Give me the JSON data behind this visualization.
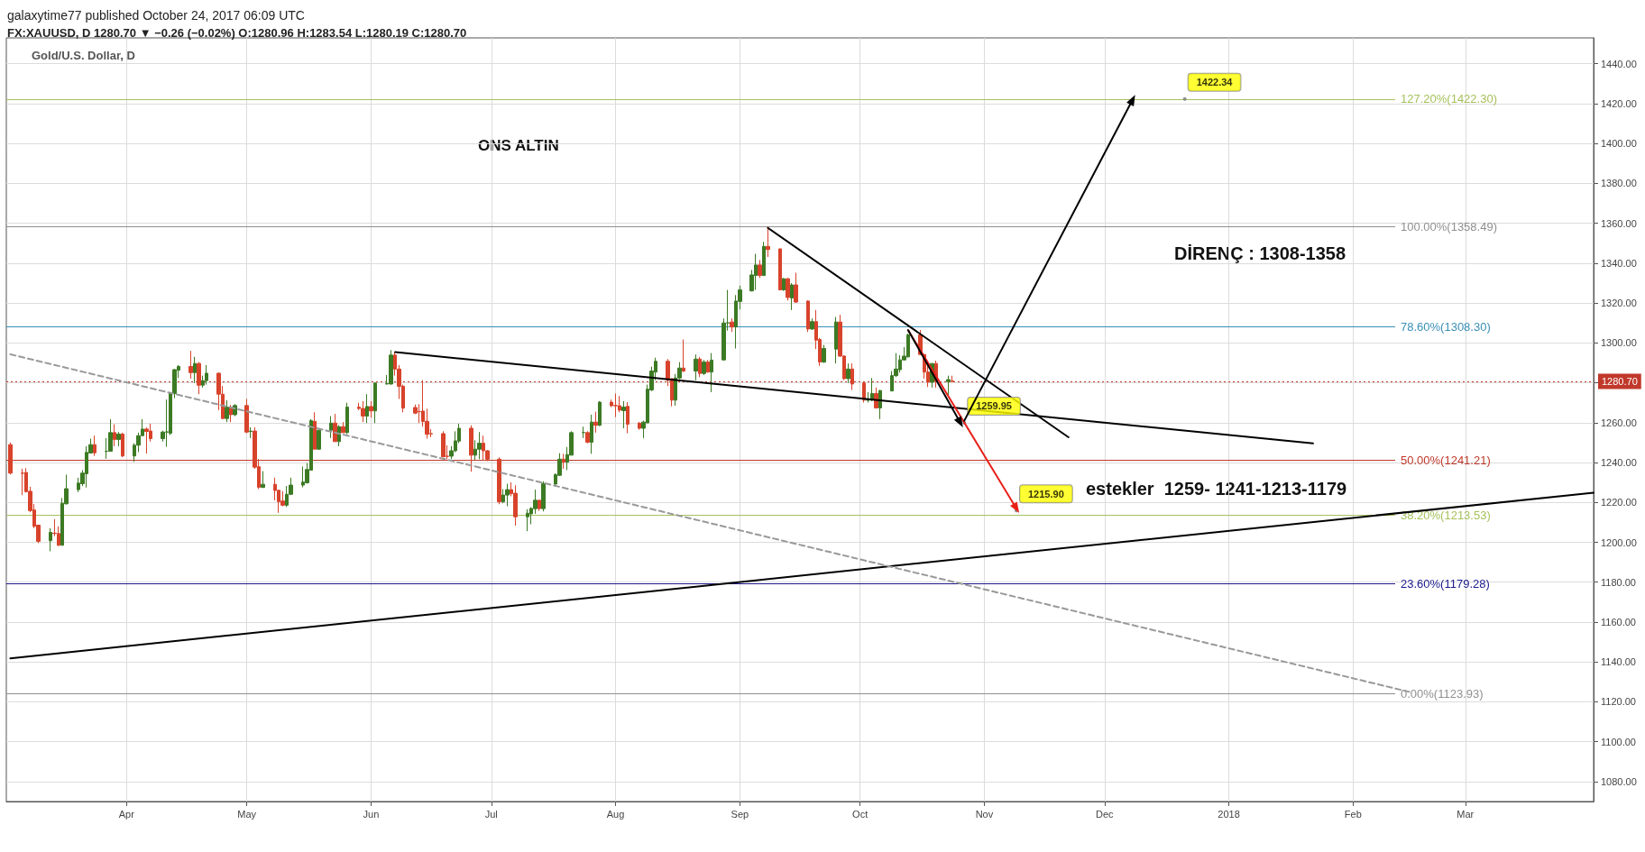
{
  "chart_data": {
    "type": "candlestick",
    "title": "Gold/U.S. Dollar, D",
    "annotations": [
      "galaxytime77 published October 24, 2017 06:09 UTC",
      "FX:XAUUSD, D 1280.70 ▼ −0.26 (−0.02%) O:1280.96 H:1283.54 L:1280.19 C:1280.70",
      "ONS ALTIN",
      "DİRENÇ : 1308-1358",
      "estekler  1259- 1241-1213-1179",
      {
        "text": "1422.34",
        "x": "2017-12-21",
        "y": 1422.34
      },
      {
        "text": "1259.95",
        "x": "2017-10-27",
        "y": 1259.95
      },
      {
        "text": "1215.90",
        "x": "2017-11-09",
        "y": 1215.9
      }
    ],
    "series": [
      {
        "x": [
          "2017-03-03",
          "2017-03-06",
          "2017-03-07",
          "2017-03-08",
          "2017-03-09",
          "2017-03-10",
          "2017-03-13",
          "2017-03-14",
          "2017-03-15",
          "2017-03-16",
          "2017-03-17",
          "2017-03-20",
          "2017-03-21",
          "2017-03-22",
          "2017-03-23",
          "2017-03-24",
          "2017-03-27",
          "2017-03-28",
          "2017-03-29",
          "2017-03-30",
          "2017-03-31",
          "2017-04-03",
          "2017-04-04",
          "2017-04-05",
          "2017-04-06",
          "2017-04-07",
          "2017-04-10",
          "2017-04-11",
          "2017-04-12",
          "2017-04-13",
          "2017-04-14",
          "2017-04-17",
          "2017-04-18",
          "2017-04-19",
          "2017-04-20",
          "2017-04-21",
          "2017-04-24",
          "2017-04-25",
          "2017-04-26",
          "2017-04-27",
          "2017-04-28",
          "2017-05-01",
          "2017-05-02",
          "2017-05-03",
          "2017-05-04",
          "2017-05-05",
          "2017-05-08",
          "2017-05-09",
          "2017-05-10",
          "2017-05-11",
          "2017-05-12",
          "2017-05-15",
          "2017-05-16",
          "2017-05-17",
          "2017-05-18",
          "2017-05-19",
          "2017-05-22",
          "2017-05-23",
          "2017-05-24",
          "2017-05-25",
          "2017-05-26",
          "2017-05-29",
          "2017-05-30",
          "2017-05-31",
          "2017-06-01",
          "2017-06-02",
          "2017-06-05",
          "2017-06-06",
          "2017-06-07",
          "2017-06-08",
          "2017-06-09",
          "2017-06-12",
          "2017-06-13",
          "2017-06-14",
          "2017-06-15",
          "2017-06-16",
          "2017-06-19",
          "2017-06-20",
          "2017-06-21",
          "2017-06-22",
          "2017-06-23",
          "2017-06-26",
          "2017-06-27",
          "2017-06-28",
          "2017-06-29",
          "2017-06-30",
          "2017-07-03",
          "2017-07-04",
          "2017-07-05",
          "2017-07-06",
          "2017-07-07",
          "2017-07-10",
          "2017-07-11",
          "2017-07-12",
          "2017-07-13",
          "2017-07-14",
          "2017-07-17",
          "2017-07-18",
          "2017-07-19",
          "2017-07-20",
          "2017-07-21",
          "2017-07-24",
          "2017-07-25",
          "2017-07-26",
          "2017-07-27",
          "2017-07-28",
          "2017-07-31",
          "2017-08-01",
          "2017-08-02",
          "2017-08-03",
          "2017-08-04",
          "2017-08-07",
          "2017-08-08",
          "2017-08-09",
          "2017-08-10",
          "2017-08-11",
          "2017-08-14",
          "2017-08-15",
          "2017-08-16",
          "2017-08-17",
          "2017-08-18",
          "2017-08-21",
          "2017-08-22",
          "2017-08-23",
          "2017-08-24",
          "2017-08-25",
          "2017-08-28",
          "2017-08-29",
          "2017-08-30",
          "2017-08-31",
          "2017-09-01",
          "2017-09-04",
          "2017-09-05",
          "2017-09-06",
          "2017-09-07",
          "2017-09-08",
          "2017-09-11",
          "2017-09-12",
          "2017-09-13",
          "2017-09-14",
          "2017-09-15",
          "2017-09-18",
          "2017-09-19",
          "2017-09-20",
          "2017-09-21",
          "2017-09-22",
          "2017-09-25",
          "2017-09-26",
          "2017-09-27",
          "2017-09-28",
          "2017-09-29",
          "2017-10-02",
          "2017-10-03",
          "2017-10-04",
          "2017-10-05",
          "2017-10-06",
          "2017-10-09",
          "2017-10-10",
          "2017-10-11",
          "2017-10-12",
          "2017-10-13",
          "2017-10-16",
          "2017-10-17",
          "2017-10-18",
          "2017-10-19",
          "2017-10-20",
          "2017-10-23",
          "2017-10-24"
        ],
        "ohlc": [
          [
            1249,
            1250,
            1234,
            1234.7
          ],
          [
            1234.7,
            1236.9,
            1223.7,
            1234.6
          ],
          [
            1235,
            1237.2,
            1225,
            1225.4
          ],
          [
            1225.6,
            1227.9,
            1215.1,
            1215.9
          ],
          [
            1216.2,
            1219.2,
            1207.1,
            1208
          ],
          [
            1208.6,
            1208.6,
            1199.6,
            1200.5
          ],
          [
            1200.8,
            1207.1,
            1195.5,
            1205
          ],
          [
            1204.6,
            1211.6,
            1203.1,
            1204.4
          ],
          [
            1204.4,
            1208,
            1198.1,
            1198.5
          ],
          [
            1198.5,
            1222.2,
            1198.5,
            1219.6
          ],
          [
            1219.3,
            1233.9,
            1219,
            1226.9
          ],
          [
            1226.4,
            1232.4,
            1225.2,
            1229.7
          ],
          [
            1229.4,
            1236.2,
            1228.2,
            1234.7
          ],
          [
            1234.4,
            1248.2,
            1227.5,
            1245.1
          ],
          [
            1244.8,
            1252,
            1244.5,
            1249
          ],
          [
            1249,
            1253.5,
            1243.3,
            1244.9
          ],
          [
            1245.6,
            1252.3,
            1241.9,
            1245.7
          ],
          [
            1245.7,
            1261.8,
            1245.7,
            1255
          ],
          [
            1255,
            1259.2,
            1248.2,
            1251.6
          ],
          [
            1251.6,
            1255.3,
            1248.2,
            1254.3
          ],
          [
            1254.3,
            1255,
            1242.7,
            1243.3
          ],
          [
            1243.3,
            1249.7,
            1240.4,
            1248.7
          ],
          [
            1248.7,
            1255,
            1245.2,
            1253.5
          ],
          [
            1253.5,
            1261.8,
            1253.2,
            1256.8
          ],
          [
            1256.8,
            1257.6,
            1244.5,
            1255.6
          ],
          [
            1255.8,
            1259.5,
            1250.5,
            1252
          ],
          [
            1252,
            1256,
            1250.5,
            1255.3
          ],
          [
            1255.3,
            1271.6,
            1247.9,
            1255.4
          ],
          [
            1254.7,
            1275.4,
            1253.8,
            1274.9
          ],
          [
            1274.6,
            1286.9,
            1272.3,
            1286.6
          ],
          [
            1286.3,
            1288.9,
            1282.4,
            1288.2
          ],
          [
            1288.2,
            1296,
            1282.1,
            1285.1
          ],
          [
            1285.1,
            1293,
            1279.9,
            1289.7
          ],
          [
            1289.7,
            1290.4,
            1274.3,
            1278.8
          ],
          [
            1278.8,
            1283.6,
            1277.6,
            1281.1
          ],
          [
            1281.1,
            1288.9,
            1279.1,
            1284.8
          ],
          [
            1284.8,
            1285.1,
            1266.3,
            1274.3
          ],
          [
            1274.3,
            1278.4,
            1261.8,
            1262.1
          ],
          [
            1262.1,
            1271.3,
            1260.3,
            1267.8
          ],
          [
            1267.8,
            1268.9,
            1260.3,
            1264
          ],
          [
            1264,
            1269.3,
            1263.3,
            1268.6
          ],
          [
            1268.6,
            1271.9,
            1254.7,
            1255.3
          ],
          [
            1255.6,
            1257.7,
            1252.3,
            1255.8
          ],
          [
            1255.8,
            1257.7,
            1236.9,
            1237.7
          ],
          [
            1237.9,
            1241.8,
            1226.7,
            1227.6
          ],
          [
            1227.6,
            1235.7,
            1227.2,
            1229.1
          ],
          [
            1229.1,
            1232.4,
            1221.1,
            1226
          ],
          [
            1226.1,
            1226.1,
            1214.8,
            1220.4
          ],
          [
            1220.7,
            1225.6,
            1218.1,
            1218.6
          ],
          [
            1218.6,
            1228.2,
            1217.7,
            1224.1
          ],
          [
            1224.1,
            1232.4,
            1223.7,
            1228.7
          ],
          [
            1228.7,
            1238,
            1227.6,
            1230.2
          ],
          [
            1229.9,
            1239.7,
            1229.4,
            1236.5
          ],
          [
            1236.2,
            1261.8,
            1236.2,
            1261
          ],
          [
            1260.7,
            1265.2,
            1246.7,
            1246.7
          ],
          [
            1246.7,
            1256.8,
            1246.4,
            1256.2
          ],
          [
            1256.2,
            1263.3,
            1252.3,
            1259.8
          ],
          [
            1259.8,
            1264.4,
            1250.5,
            1250.5
          ],
          [
            1250.5,
            1258.8,
            1248.2,
            1258
          ],
          [
            1258,
            1260.3,
            1255,
            1255
          ],
          [
            1255,
            1270,
            1254.3,
            1267.8
          ],
          [
            1267.8,
            1270,
            1266.3,
            1267.1
          ],
          [
            1267.1,
            1270.8,
            1260.3,
            1263.3
          ],
          [
            1263.3,
            1274.3,
            1259.8,
            1268.1
          ],
          [
            1268.1,
            1270.8,
            1262.5,
            1265.9
          ],
          [
            1265.9,
            1279.9,
            1259.8,
            1279.9
          ],
          [
            1279.4,
            1283.9,
            1279.1,
            1279.6
          ],
          [
            1279.4,
            1296.4,
            1279.1,
            1293.9
          ],
          [
            1293.9,
            1295.4,
            1283.6,
            1286.9
          ],
          [
            1286.9,
            1288.9,
            1271.9,
            1278.2
          ],
          [
            1278.3,
            1279.1,
            1265.2,
            1267.3
          ],
          [
            1267.6,
            1269.1,
            1264.3,
            1264.8
          ],
          [
            1265.6,
            1269.3,
            1259.8,
            1265.5
          ],
          [
            1265.8,
            1281.3,
            1258,
            1260.6
          ],
          [
            1260.7,
            1267,
            1252,
            1254.2
          ],
          [
            1254.5,
            1256.8,
            1252.7,
            1254.4
          ],
          [
            1254.5,
            1255.7,
            1242.6,
            1242.9
          ],
          [
            1243.2,
            1248.7,
            1241.7,
            1243.1
          ],
          [
            1243.2,
            1248.2,
            1241.7,
            1245.9
          ],
          [
            1245.9,
            1255.7,
            1245.2,
            1250.9
          ],
          [
            1250.8,
            1259.5,
            1249.7,
            1257.2
          ],
          [
            1257.2,
            1258.7,
            1235.4,
            1243.7
          ],
          [
            1243.7,
            1251.2,
            1241.4,
            1246.7
          ],
          [
            1246.7,
            1255.3,
            1241.7,
            1249.7
          ],
          [
            1249.7,
            1253.5,
            1241.1,
            1245.9
          ],
          [
            1245.9,
            1246.2,
            1240.7,
            1241.7
          ],
          [
            1241.7,
            1242.6,
            1219.1,
            1220.3
          ],
          [
            1220.3,
            1226.7,
            1219.6,
            1223.7
          ],
          [
            1223.7,
            1229.4,
            1218.1,
            1226.4
          ],
          [
            1226.4,
            1230.1,
            1223.1,
            1224.4
          ],
          [
            1224.6,
            1228.6,
            1208.3,
            1212.8
          ],
          [
            1212.8,
            1216.6,
            1205.6,
            1214.6
          ],
          [
            1214.3,
            1217.6,
            1209,
            1217
          ],
          [
            1216.9,
            1226.4,
            1214.3,
            1221.1
          ],
          [
            1221.1,
            1221.1,
            1215.8,
            1216.9
          ],
          [
            1216.9,
            1230.6,
            1215.5,
            1229.4
          ],
          [
            1229.2,
            1234.6,
            1228.2,
            1233.9
          ],
          [
            1233.6,
            1244.7,
            1233.3,
            1241.7
          ],
          [
            1241.7,
            1244.4,
            1236.9,
            1240.2
          ],
          [
            1240.2,
            1247.8,
            1236.2,
            1244
          ],
          [
            1243.7,
            1255.7,
            1243.7,
            1255
          ],
          [
            1255,
            1258,
            1252.3,
            1255.1
          ],
          [
            1255,
            1255.7,
            1249.7,
            1250.2
          ],
          [
            1250.2,
            1264,
            1244.4,
            1260.3
          ],
          [
            1260.3,
            1265.5,
            1255,
            1258.7
          ],
          [
            1258.7,
            1270.8,
            1258.3,
            1270.3
          ],
          [
            1270.3,
            1271.6,
            1267.8,
            1268.5
          ],
          [
            1268.6,
            1274.6,
            1262.8,
            1268.5
          ],
          [
            1268.5,
            1273.4,
            1265.2,
            1266.3
          ],
          [
            1266,
            1270.8,
            1257.2,
            1267.8
          ],
          [
            1268.2,
            1270.3,
            1254.7,
            1259.2
          ],
          [
            1259.8,
            1260.3,
            1256.5,
            1257.2
          ],
          [
            1257.2,
            1261,
            1252.3,
            1260.3
          ],
          [
            1259.9,
            1279.1,
            1259.8,
            1276.8
          ],
          [
            1276.4,
            1288.1,
            1275.8,
            1285.9
          ],
          [
            1285.4,
            1292.6,
            1281.3,
            1290.8
          ],
          [
            1290.8,
            1291.9,
            1278.4,
            1281.3
          ],
          [
            1282.1,
            1282.1,
            1268.2,
            1271.3
          ],
          [
            1271.3,
            1284.4,
            1268.5,
            1282.4
          ],
          [
            1282.4,
            1290.4,
            1281.8,
            1287.4
          ],
          [
            1287.4,
            1301.7,
            1285.4,
            1285.9
          ],
          [
            1285.9,
            1294.2,
            1281.3,
            1291.9
          ],
          [
            1291.9,
            1293,
            1282.9,
            1284.7
          ],
          [
            1284.7,
            1291.4,
            1283.9,
            1290.4
          ],
          [
            1290.4,
            1291.4,
            1285.1,
            1285.4
          ],
          [
            1285.4,
            1294.9,
            1275.3,
            1291.4
          ],
          [
            1291.5,
            1312.3,
            1291.1,
            1310
          ],
          [
            1310,
            1326.6,
            1306.2,
            1310.1
          ],
          [
            1310.5,
            1312.3,
            1305.5,
            1308
          ],
          [
            1308,
            1324,
            1297.2,
            1321
          ],
          [
            1320.8,
            1328.8,
            1316.8,
            1326.6
          ],
          [
            1326.1,
            1336.6,
            1325.8,
            1334.1
          ],
          [
            1333.8,
            1344.7,
            1326.6,
            1339.1
          ],
          [
            1339.1,
            1341.6,
            1332.6,
            1333.8
          ],
          [
            1333.8,
            1350.7,
            1333.6,
            1348.4
          ],
          [
            1348.4,
            1358.5,
            1343.1,
            1346.9
          ],
          [
            1347.2,
            1347.2,
            1326.6,
            1326.6
          ],
          [
            1326.6,
            1332.6,
            1326.1,
            1332.2
          ],
          [
            1332.2,
            1332.6,
            1321.3,
            1322.8
          ],
          [
            1322.5,
            1330,
            1316.5,
            1329.1
          ],
          [
            1329.1,
            1335.2,
            1320.1,
            1320.5
          ],
          [
            1321,
            1321.3,
            1305.5,
            1307
          ],
          [
            1307,
            1312.3,
            1306.5,
            1310.7
          ],
          [
            1310.7,
            1316.5,
            1296.9,
            1301.4
          ],
          [
            1301.7,
            1302.5,
            1288.5,
            1290.4
          ],
          [
            1290.4,
            1299,
            1290,
            1297.2
          ],
          [
            1296.9,
            1313,
            1289.7,
            1310.5
          ],
          [
            1310.5,
            1314.1,
            1293,
            1293.4
          ],
          [
            1293.4,
            1293.9,
            1281.4,
            1282.1
          ],
          [
            1282.1,
            1289.7,
            1279.9,
            1286.9
          ],
          [
            1286.9,
            1289.7,
            1276.4,
            1279.4
          ],
          [
            1279.9,
            1280.6,
            1270.1,
            1271.3
          ],
          [
            1271.3,
            1275.3,
            1270.1,
            1271.4
          ],
          [
            1271.3,
            1282.4,
            1270.8,
            1274.6
          ],
          [
            1274.6,
            1277.6,
            1267.1,
            1267.4
          ],
          [
            1267.4,
            1276.4,
            1261.8,
            1276.1
          ],
          [
            1275.9,
            1285.9,
            1275.8,
            1283.6
          ],
          [
            1283.6,
            1294.9,
            1282.9,
            1286.9
          ],
          [
            1286.6,
            1293.9,
            1285.1,
            1291.5
          ],
          [
            1291.5,
            1297.9,
            1291.1,
            1293.4
          ],
          [
            1293,
            1304.7,
            1292.7,
            1304
          ],
          [
            1304,
            1306.5,
            1293.9,
            1294.2
          ],
          [
            1294.2,
            1294.2,
            1282.1,
            1285.4
          ],
          [
            1285.4,
            1288.9,
            1277.9,
            1280.3
          ],
          [
            1280.3,
            1289.7,
            1277.6,
            1289.7
          ],
          [
            1289.7,
            1291.1,
            1277.6,
            1280.6
          ],
          [
            1280.6,
            1283.6,
            1273.8,
            1281.6
          ],
          [
            1280.96,
            1283.54,
            1280.19,
            1280.7
          ]
        ]
      },
      {
        "type": "line",
        "x": [
          "2017-06-07",
          "2018-01-22"
        ],
        "values": [
          1295.4,
          1249.6
        ],
        "color": "#000000",
        "line_style": "solid",
        "marker": "none"
      },
      {
        "type": "line",
        "x": [
          "2017-09-08",
          "2017-11-22"
        ],
        "values": [
          1357.7,
          1252.7
        ],
        "color": "#000000",
        "line_style": "solid",
        "marker": "none"
      },
      {
        "type": "line",
        "x": [
          "2017-03-03",
          "2018-04-02"
        ],
        "values": [
          1141.8,
          1224.9
        ],
        "color": "#000000",
        "line_style": "solid",
        "marker": "none"
      },
      {
        "type": "line",
        "x": [
          "2017-03-03",
          "2018-02-15"
        ],
        "values": [
          1294.3,
          1125
        ],
        "color": "#999999",
        "line_style": "dashed",
        "marker": "none"
      },
      {
        "type": "line",
        "x": [
          "2017-10-27",
          "2017-12-08"
        ],
        "values": [
          1261,
          1422
        ],
        "color": "#000000",
        "line_style": "solid",
        "marker": "triangle"
      },
      {
        "type": "line",
        "x": [
          "2017-10-13",
          "2017-10-26"
        ],
        "values": [
          1306.4,
          1260
        ],
        "color": "#000000",
        "line_style": "solid",
        "marker": "triangle"
      },
      {
        "type": "line",
        "x": [
          "2017-10-13",
          "2017-11-09"
        ],
        "values": [
          1306.4,
          1217
        ],
        "color": "#e8201a",
        "line_style": "solid",
        "marker": "triangle"
      }
    ],
    "ref_lines": [
      {
        "axis": "y",
        "value": 1422.3,
        "label": "127.20%(1422.30)",
        "color": "#a5c25c",
        "line_style": "solid"
      },
      {
        "axis": "y",
        "value": 1358.49,
        "label": "100.00%(1358.49)",
        "color": "#909090",
        "line_style": "solid"
      },
      {
        "axis": "y",
        "value": 1308.3,
        "label": "78.60%(1308.30)",
        "color": "#3a8fb7",
        "line_style": "solid"
      },
      {
        "axis": "y",
        "value": 1241.21,
        "label": "50.00%(1241.21)",
        "color": "#c0392b",
        "line_style": "solid"
      },
      {
        "axis": "y",
        "value": 1213.53,
        "label": "38.20%(1213.53)",
        "color": "#a5c25c",
        "line_style": "solid"
      },
      {
        "axis": "y",
        "value": 1179.28,
        "label": "23.60%(1179.28)",
        "color": "#1a1a8c",
        "line_style": "solid"
      },
      {
        "axis": "y",
        "value": 1123.93,
        "label": "0.00%(1123.93)",
        "color": "#909090",
        "line_style": "solid"
      },
      {
        "axis": "y",
        "value": 1280.7,
        "label": "1280.70",
        "color": "#c0392b",
        "line_style": "dotted"
      }
    ],
    "xlim": [
      "2017-03-02",
      "2018-04-02"
    ],
    "xticks": [
      {
        "value": "2017-04-01",
        "label": "Apr"
      },
      {
        "value": "2017-05-01",
        "label": "May"
      },
      {
        "value": "2017-06-01",
        "label": "Jun"
      },
      {
        "value": "2017-07-01",
        "label": "Jul"
      },
      {
        "value": "2017-08-01",
        "label": "Aug"
      },
      {
        "value": "2017-09-01",
        "label": "Sep"
      },
      {
        "value": "2017-10-01",
        "label": "Oct"
      },
      {
        "value": "2017-11-01",
        "label": "Nov"
      },
      {
        "value": "2017-12-01",
        "label": "Dec"
      },
      {
        "value": "2018-01-01",
        "label": "2018"
      },
      {
        "value": "2018-02-01",
        "label": "Feb"
      },
      {
        "value": "2018-03-01",
        "label": "Mar"
      }
    ],
    "ylim": [
      1070,
      1453
    ],
    "yticks": [
      {
        "value": 1080,
        "label": "1080.00"
      },
      {
        "value": 1100,
        "label": "1100.00"
      },
      {
        "value": 1120,
        "label": "1120.00"
      },
      {
        "value": 1140,
        "label": "1140.00"
      },
      {
        "value": 1160,
        "label": "1160.00"
      },
      {
        "value": 1180,
        "label": "1180.00"
      },
      {
        "value": 1200,
        "label": "1200.00"
      },
      {
        "value": 1220,
        "label": "1220.00"
      },
      {
        "value": 1240,
        "label": "1240.00"
      },
      {
        "value": 1260,
        "label": "1260.00"
      },
      {
        "value": 1280,
        "label": null
      },
      {
        "value": 1300,
        "label": "1300.00"
      },
      {
        "value": 1320,
        "label": "1320.00"
      },
      {
        "value": 1340,
        "label": "1340.00"
      },
      {
        "value": 1360,
        "label": "1360.00"
      },
      {
        "value": 1380,
        "label": "1380.00"
      },
      {
        "value": 1400,
        "label": "1400.00"
      },
      {
        "value": 1420,
        "label": "1420.00"
      },
      {
        "value": 1440,
        "label": "1440.00"
      }
    ],
    "grid": true
  }
}
